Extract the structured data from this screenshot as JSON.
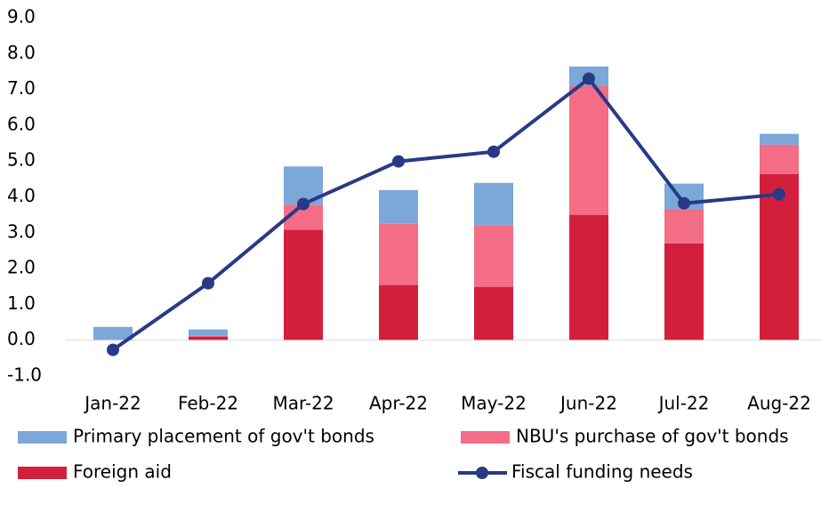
{
  "chart_data": {
    "type": "bar",
    "categories": [
      "Jan-22",
      "Feb-22",
      "Mar-22",
      "Apr-22",
      "May-22",
      "Jun-22",
      "Jul-22",
      "Aug-22"
    ],
    "series": [
      {
        "name": "Foreign aid",
        "color": "#d21f3c",
        "values": [
          0,
          0.1,
          3.08,
          1.54,
          1.49,
          3.5,
          2.7,
          4.64
        ]
      },
      {
        "name": "NBU's purchase of gov't bonds",
        "color": "#f26d85",
        "values": [
          0,
          0.02,
          0.7,
          1.71,
          1.71,
          3.6,
          0.95,
          0.82
        ]
      },
      {
        "name": "Primary placement of gov't bonds",
        "color": "#7ba7d9",
        "values": [
          0.37,
          0.18,
          1.07,
          0.94,
          1.19,
          0.54,
          0.72,
          0.3
        ]
      },
      {
        "name": "Fiscal funding needs",
        "color": "#283a85",
        "type": "line",
        "values": [
          -0.27,
          1.59,
          3.8,
          4.99,
          5.26,
          7.3,
          3.82,
          4.07
        ]
      }
    ],
    "ylim": [
      -1,
      9
    ],
    "yticks": [
      {
        "value": -1,
        "label": "-1.0"
      },
      {
        "value": 0,
        "label": "0.0"
      },
      {
        "value": 1,
        "label": "1.0"
      },
      {
        "value": 2,
        "label": "2.0"
      },
      {
        "value": 3,
        "label": "3.0"
      },
      {
        "value": 4,
        "label": "4.0"
      },
      {
        "value": 5,
        "label": "5.0"
      },
      {
        "value": 6,
        "label": "6.0"
      },
      {
        "value": 7,
        "label": "7.0"
      },
      {
        "value": 8,
        "label": "8.0"
      },
      {
        "value": 9,
        "label": "9.0"
      }
    ],
    "grid": false
  }
}
